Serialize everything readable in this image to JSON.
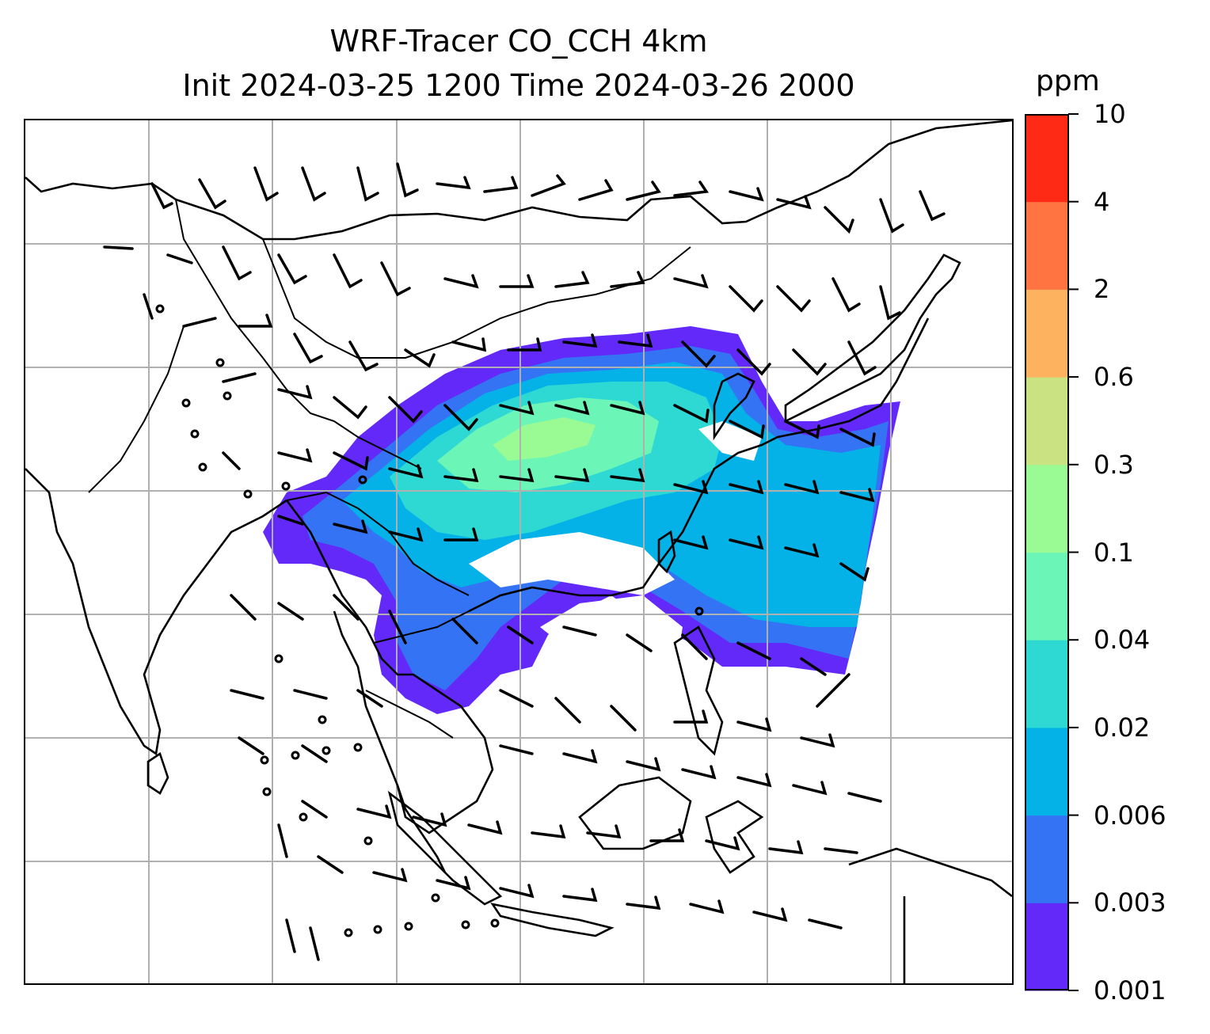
{
  "title": {
    "line1": "WRF-Tracer CO_CCH 4km",
    "line2": "Init 2024-03-25 1200 Time 2024-03-26 2000"
  },
  "colorbar": {
    "unit": "ppm",
    "levels": [
      "0.001",
      "0.003",
      "0.006",
      "0.02",
      "0.04",
      "0.1",
      "0.3",
      "0.6",
      "2",
      "4",
      "10"
    ],
    "colors": [
      "#6329f8",
      "#3474f4",
      "#04b2e8",
      "#2ed9d4",
      "#6bf6b7",
      "#9afa94",
      "#cbe283",
      "#fdb260",
      "#ff7441",
      "#ff2a16"
    ]
  },
  "map": {
    "gridlines": true,
    "line_color": "#000000",
    "grid_color": "#b0b0b0",
    "plume_levels": [
      "0.001",
      "0.003",
      "0.006",
      "0.02",
      "0.04",
      "0.1"
    ],
    "wind_barbs": "black"
  }
}
